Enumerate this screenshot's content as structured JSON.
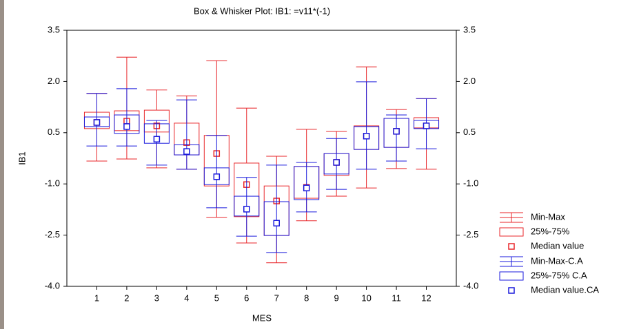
{
  "chart_data": {
    "type": "box",
    "title": "Box & Whisker Plot: IB1: =v11*(-1)",
    "x_label": "MES",
    "y_label": "IB1",
    "categories": [
      "1",
      "2",
      "3",
      "4",
      "5",
      "6",
      "7",
      "8",
      "9",
      "10",
      "11",
      "12"
    ],
    "ylim": [
      -4,
      3.5
    ],
    "yticks": [
      3.5,
      {
        "value": 2,
        "label": "2.0"
      },
      0.5,
      {
        "value": -1,
        "label": "-1.0"
      },
      -2.5,
      {
        "value": -4,
        "label": "-4.0"
      }
    ],
    "y2lim": [
      -4,
      3.5
    ],
    "y2ticks": [
      3.5,
      {
        "value": 2,
        "label": "2.0"
      },
      0.5,
      {
        "value": -1,
        "label": "-1.0"
      },
      -2.5,
      {
        "value": -4,
        "label": "-4.0"
      }
    ],
    "series": [
      {
        "range_name": "Min-Max",
        "box_name": "25%-75%",
        "median_name": "Median value",
        "color": "#e8262a",
        "min": [
          -0.33,
          -0.27,
          -0.53,
          -0.57,
          -1.98,
          -2.73,
          -3.31,
          -2.08,
          -1.36,
          -1.12,
          -0.55,
          -0.57
        ],
        "q1": [
          0.62,
          0.56,
          0.52,
          -0.15,
          -1.06,
          -1.96,
          -2.51,
          -1.42,
          -0.75,
          0.01,
          0.07,
          0.64
        ],
        "median": [
          0.8,
          0.84,
          0.7,
          0.21,
          -0.11,
          -1.02,
          -1.5,
          -1.1,
          -0.37,
          0.4,
          0.54,
          0.7
        ],
        "q3": [
          1.1,
          1.14,
          1.16,
          0.78,
          0.42,
          -0.39,
          -1.06,
          -0.49,
          -0.11,
          0.7,
          0.92,
          0.94
        ],
        "max": [
          1.65,
          2.71,
          1.75,
          1.58,
          2.61,
          1.22,
          -0.19,
          0.6,
          0.54,
          2.43,
          1.18,
          1.5
        ]
      },
      {
        "range_name": "Min-Max-C.A",
        "box_name": "25%-75% C.A",
        "median_name": "Median value.CA",
        "color": "#1a1adc",
        "min": [
          0.11,
          0.11,
          -0.45,
          -0.57,
          -1.7,
          -2.53,
          -3.01,
          -1.82,
          -1.16,
          -0.57,
          -0.33,
          0.03
        ],
        "q1": [
          0.68,
          0.48,
          0.19,
          -0.15,
          -1.02,
          -1.94,
          -2.51,
          -1.46,
          -0.71,
          0.01,
          0.07,
          0.62
        ],
        "median": [
          0.8,
          0.68,
          0.31,
          -0.05,
          -0.79,
          -1.74,
          -2.15,
          -1.12,
          -0.37,
          0.4,
          0.54,
          0.7
        ],
        "q3": [
          0.96,
          1.02,
          0.76,
          0.15,
          -0.53,
          -1.36,
          -1.52,
          -0.49,
          -0.11,
          0.68,
          0.92,
          0.86
        ],
        "max": [
          1.65,
          1.79,
          0.86,
          1.46,
          0.42,
          -0.81,
          -0.45,
          -0.37,
          0.33,
          1.99,
          1.02,
          1.5
        ]
      }
    ]
  }
}
